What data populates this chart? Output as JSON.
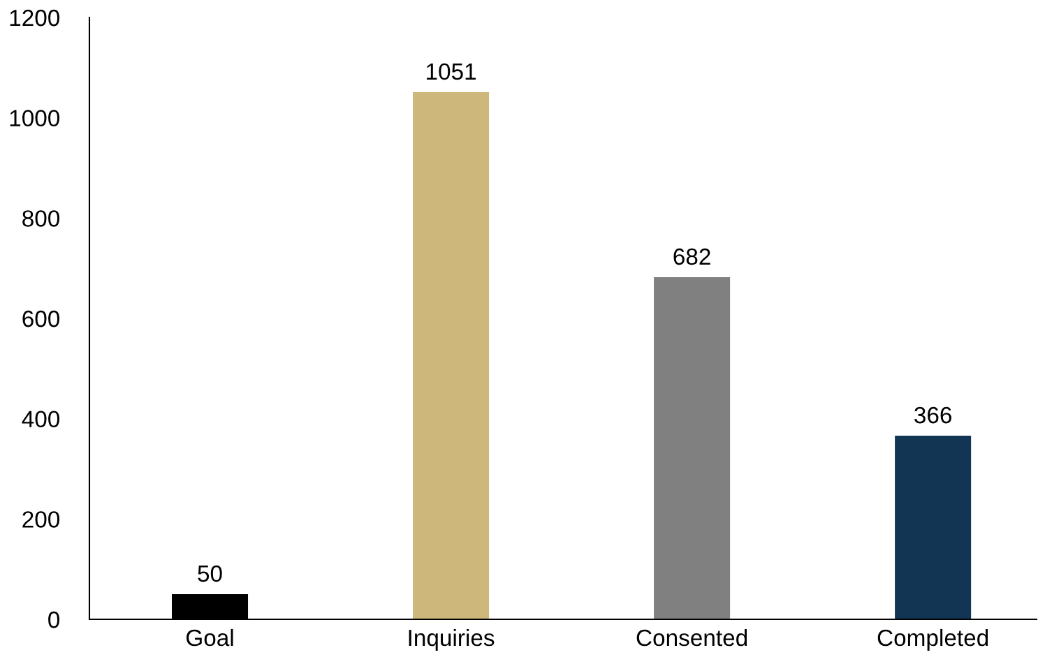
{
  "chart_data": {
    "type": "bar",
    "categories": [
      "Goal",
      "Inquiries",
      "Consented",
      "Completed"
    ],
    "values": [
      50,
      1051,
      682,
      366
    ],
    "colors": [
      "#000000",
      "#cdb77b",
      "#808080",
      "#123553"
    ],
    "ylim": [
      0,
      1200
    ],
    "yticks": [
      0,
      200,
      400,
      600,
      800,
      1000,
      1200
    ],
    "grid": false,
    "data_labels": true
  }
}
